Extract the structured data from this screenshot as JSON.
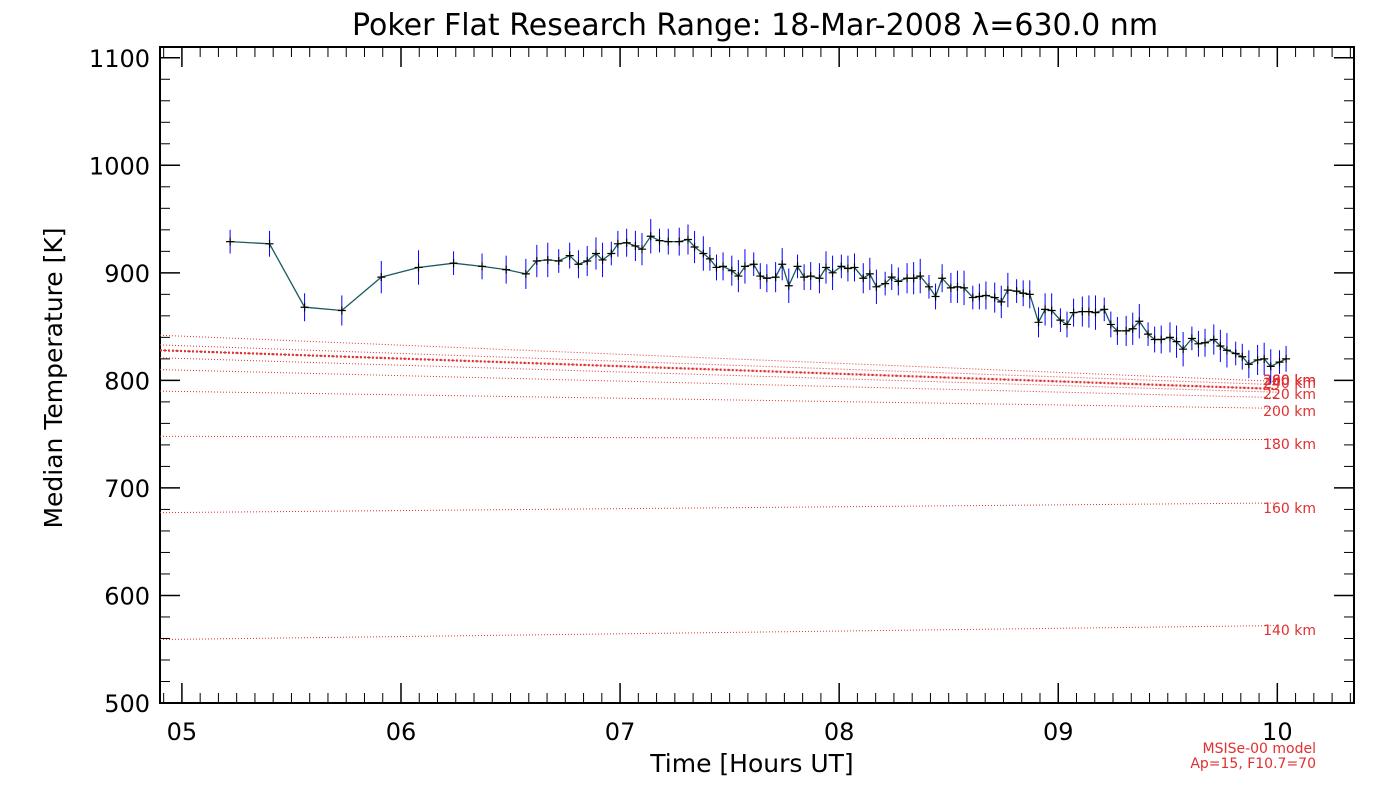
{
  "chart_data": {
    "type": "scatter",
    "title": "Poker Flat Research Range: 18-Mar-2008 λ=630.0 nm",
    "xlabel": "Time [Hours UT]",
    "ylabel": "Median Temperature [K]",
    "xlim": [
      4.9,
      10.35
    ],
    "ylim": [
      500,
      1110
    ],
    "x_ticks": [
      5,
      6,
      7,
      8,
      9,
      10
    ],
    "x_tick_labels": [
      "05",
      "06",
      "07",
      "08",
      "09",
      "10"
    ],
    "y_ticks": [
      500,
      600,
      700,
      800,
      900,
      1000,
      1100
    ],
    "y_tick_labels": [
      "500",
      "600",
      "700",
      "800",
      "900",
      "1000",
      "1100"
    ],
    "grid": false,
    "colors": {
      "data_line": "#1a5a60",
      "error_bars": "#0000ff",
      "markers": "#000000",
      "model": "#e03030"
    },
    "series": [
      {
        "x": [
          5.22,
          5.4,
          5.56,
          5.73,
          5.91,
          6.08,
          6.24,
          6.37,
          6.48,
          6.57,
          6.62,
          6.67,
          6.72,
          6.77,
          6.81,
          6.85,
          6.89,
          6.92,
          6.96,
          6.99,
          7.03,
          7.07,
          7.1,
          7.14,
          7.18,
          7.22,
          7.27,
          7.31,
          7.34,
          7.38,
          7.41,
          7.44,
          7.47,
          7.51,
          7.54,
          7.57,
          7.61,
          7.64,
          7.67,
          7.71,
          7.74,
          7.77,
          7.81,
          7.84,
          7.87,
          7.91,
          7.94,
          7.97,
          8.01,
          8.04,
          8.07,
          8.11,
          8.14,
          8.17,
          8.21,
          8.24,
          8.27,
          8.31,
          8.34,
          8.37,
          8.41,
          8.44,
          8.47,
          8.51,
          8.54,
          8.57,
          8.61,
          8.64,
          8.67,
          8.71,
          8.74,
          8.77,
          8.81,
          8.84,
          8.87,
          8.91,
          8.94,
          8.97,
          9.01,
          9.04,
          9.07,
          9.11,
          9.14,
          9.17,
          9.21,
          9.24,
          9.27,
          9.31,
          9.34,
          9.37,
          9.41,
          9.44,
          9.47,
          9.51,
          9.54,
          9.57,
          9.61,
          9.64,
          9.67,
          9.71,
          9.74,
          9.77,
          9.81,
          9.84,
          9.87,
          9.91,
          9.94,
          9.97,
          10.01,
          10.04
        ],
        "y": [
          929,
          927,
          868,
          865,
          896,
          905,
          909,
          906,
          903,
          899,
          911,
          912,
          911,
          916,
          908,
          911,
          918,
          912,
          918,
          927,
          928,
          925,
          922,
          934,
          930,
          929,
          929,
          931,
          924,
          918,
          913,
          905,
          906,
          902,
          897,
          906,
          908,
          897,
          895,
          896,
          908,
          888,
          906,
          896,
          897,
          895,
          905,
          900,
          906,
          904,
          905,
          895,
          899,
          887,
          890,
          896,
          892,
          895,
          895,
          897,
          887,
          878,
          895,
          886,
          887,
          886,
          877,
          878,
          879,
          877,
          873,
          884,
          883,
          881,
          880,
          854,
          866,
          865,
          856,
          852,
          863,
          864,
          864,
          863,
          866,
          852,
          846,
          846,
          848,
          855,
          843,
          838,
          838,
          840,
          836,
          829,
          839,
          834,
          835,
          838,
          832,
          828,
          825,
          822,
          815,
          819,
          820,
          813,
          817,
          820
        ]
      }
    ],
    "model": {
      "altitudes": [
        {
          "label": "140 km",
          "start": 559,
          "end": 572
        },
        {
          "label": "160 km",
          "start": 677,
          "end": 686
        },
        {
          "label": "180 km",
          "start": 748,
          "end": 745
        },
        {
          "label": "200 km",
          "start": 790,
          "end": 774
        },
        {
          "label": "220 km",
          "start": 810,
          "end": 784
        },
        {
          "label": "240 km",
          "start": 821,
          "end": 789
        },
        {
          "label": "260 km",
          "start": 828,
          "end": 792
        },
        {
          "label": "280 km",
          "start": 833,
          "end": 796
        },
        {
          "label": "300 km",
          "start": 842,
          "end": 799
        }
      ],
      "note_line1": "MSISe-00 model",
      "note_line2": "Ap=15, F10.7=70"
    }
  }
}
